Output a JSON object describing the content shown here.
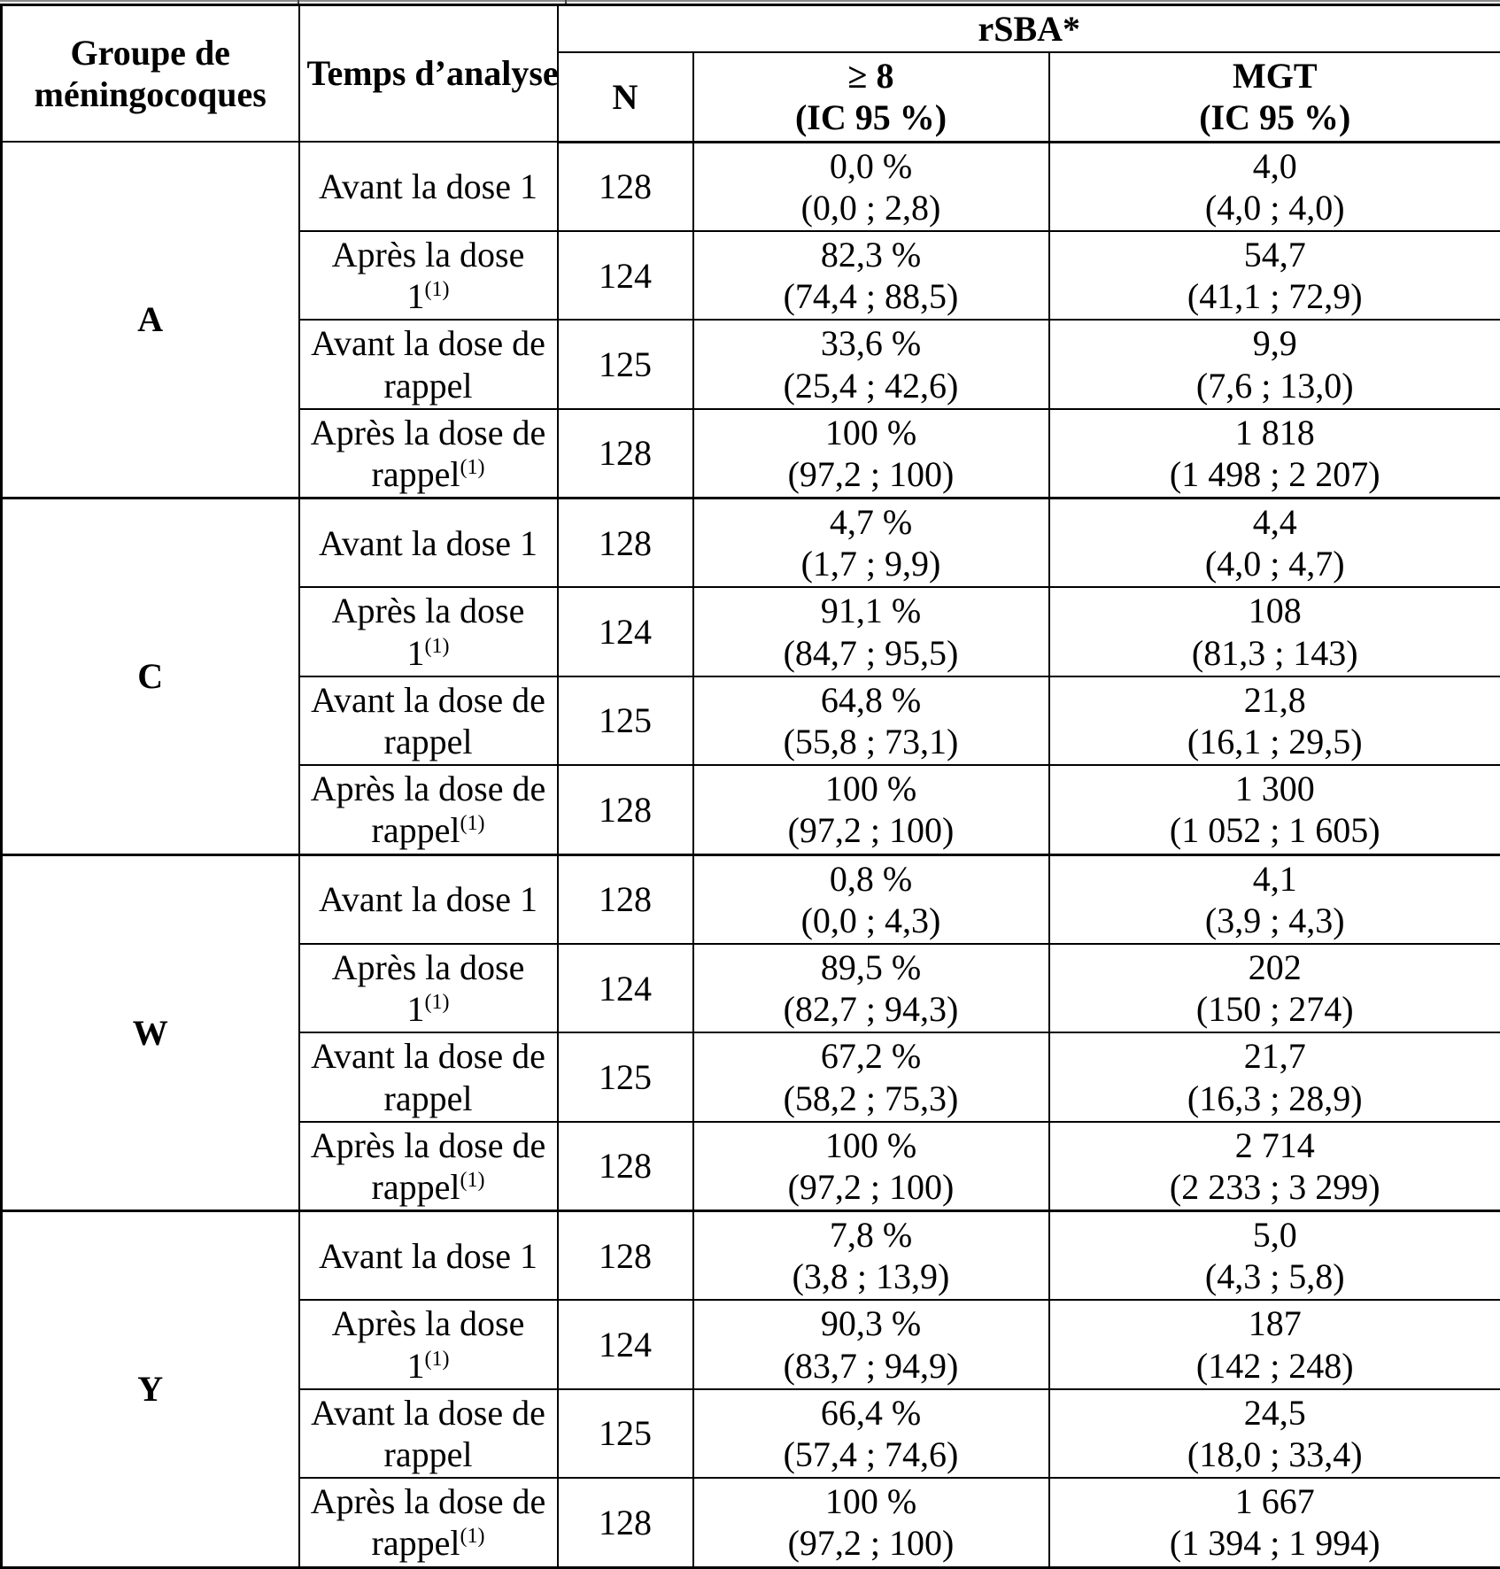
{
  "page": {
    "background": "#ffffff",
    "border_color": "#000000",
    "top_rule_color": "#8a8a8a"
  },
  "table": {
    "header": {
      "group_col": "Groupe de méningocoques",
      "time_col": "Temps d’analyse",
      "rsba_span": "rSBA*",
      "n_col": "N",
      "ge8_line1": "≥ 8",
      "ge8_line2": "(IC 95 %)",
      "mgt_line1": "MGT",
      "mgt_line2": "(IC 95 %)"
    },
    "groups": [
      {
        "name": "A",
        "rows": [
          {
            "time": "Avant la dose 1",
            "time_sup": "",
            "n": "128",
            "ge8_value": "0,0 %",
            "ge8_ci": "(0,0 ; 2,8)",
            "mgt_value": "4,0",
            "mgt_ci": "(4,0 ; 4,0)"
          },
          {
            "time": "Après la dose 1",
            "time_sup": "(1)",
            "n": "124",
            "ge8_value": "82,3 %",
            "ge8_ci": "(74,4 ; 88,5)",
            "mgt_value": "54,7",
            "mgt_ci": "(41,1 ; 72,9)"
          },
          {
            "time": "Avant la dose de rappel",
            "time_sup": "",
            "n": "125",
            "ge8_value": "33,6 %",
            "ge8_ci": "(25,4 ; 42,6)",
            "mgt_value": "9,9",
            "mgt_ci": "(7,6 ; 13,0)"
          },
          {
            "time": "Après la dose de rappel",
            "time_sup": "(1)",
            "n": "128",
            "ge8_value": "100 %",
            "ge8_ci": "(97,2 ; 100)",
            "mgt_value": "1 818",
            "mgt_ci": "(1 498 ; 2 207)"
          }
        ]
      },
      {
        "name": "C",
        "rows": [
          {
            "time": "Avant la dose 1",
            "time_sup": "",
            "n": "128",
            "ge8_value": "4,7 %",
            "ge8_ci": "(1,7 ; 9,9)",
            "mgt_value": "4,4",
            "mgt_ci": "(4,0 ; 4,7)"
          },
          {
            "time": "Après la dose 1",
            "time_sup": "(1)",
            "n": "124",
            "ge8_value": "91,1 %",
            "ge8_ci": "(84,7 ; 95,5)",
            "mgt_value": "108",
            "mgt_ci": "(81,3 ; 143)"
          },
          {
            "time": "Avant la dose de rappel",
            "time_sup": "",
            "n": "125",
            "ge8_value": "64,8 %",
            "ge8_ci": "(55,8 ; 73,1)",
            "mgt_value": "21,8",
            "mgt_ci": "(16,1 ; 29,5)"
          },
          {
            "time": "Après la dose de rappel",
            "time_sup": "(1)",
            "n": "128",
            "ge8_value": "100 %",
            "ge8_ci": "(97,2 ; 100)",
            "mgt_value": "1 300",
            "mgt_ci": "(1 052 ; 1 605)"
          }
        ]
      },
      {
        "name": "W",
        "rows": [
          {
            "time": "Avant la dose 1",
            "time_sup": "",
            "n": "128",
            "ge8_value": "0,8 %",
            "ge8_ci": "(0,0 ; 4,3)",
            "mgt_value": "4,1",
            "mgt_ci": "(3,9 ; 4,3)"
          },
          {
            "time": "Après la dose 1",
            "time_sup": "(1)",
            "n": "124",
            "ge8_value": "89,5 %",
            "ge8_ci": "(82,7 ; 94,3)",
            "mgt_value": "202",
            "mgt_ci": "(150 ; 274)"
          },
          {
            "time": "Avant la dose de rappel",
            "time_sup": "",
            "n": "125",
            "ge8_value": "67,2 %",
            "ge8_ci": "(58,2 ; 75,3)",
            "mgt_value": "21,7",
            "mgt_ci": "(16,3 ; 28,9)"
          },
          {
            "time": "Après la dose de rappel",
            "time_sup": "(1)",
            "n": "128",
            "ge8_value": "100 %",
            "ge8_ci": "(97,2 ; 100)",
            "mgt_value": "2 714",
            "mgt_ci": "(2 233 ; 3 299)"
          }
        ]
      },
      {
        "name": "Y",
        "rows": [
          {
            "time": "Avant la dose 1",
            "time_sup": "",
            "n": "128",
            "ge8_value": "7,8 %",
            "ge8_ci": "(3,8 ; 13,9)",
            "mgt_value": "5,0",
            "mgt_ci": "(4,3 ; 5,8)"
          },
          {
            "time": "Après la dose 1",
            "time_sup": "(1)",
            "n": "124",
            "ge8_value": "90,3 %",
            "ge8_ci": "(83,7 ; 94,9)",
            "mgt_value": "187",
            "mgt_ci": "(142 ; 248)"
          },
          {
            "time": "Avant la dose de rappel",
            "time_sup": "",
            "n": "125",
            "ge8_value": "66,4 %",
            "ge8_ci": "(57,4 ; 74,6)",
            "mgt_value": "24,5",
            "mgt_ci": "(18,0 ; 33,4)"
          },
          {
            "time": "Après la dose de rappel",
            "time_sup": "(1)",
            "n": "128",
            "ge8_value": "100 %",
            "ge8_ci": "(97,2 ; 100)",
            "mgt_value": "1 667",
            "mgt_ci": "(1 394 ; 1 994)"
          }
        ]
      }
    ]
  }
}
